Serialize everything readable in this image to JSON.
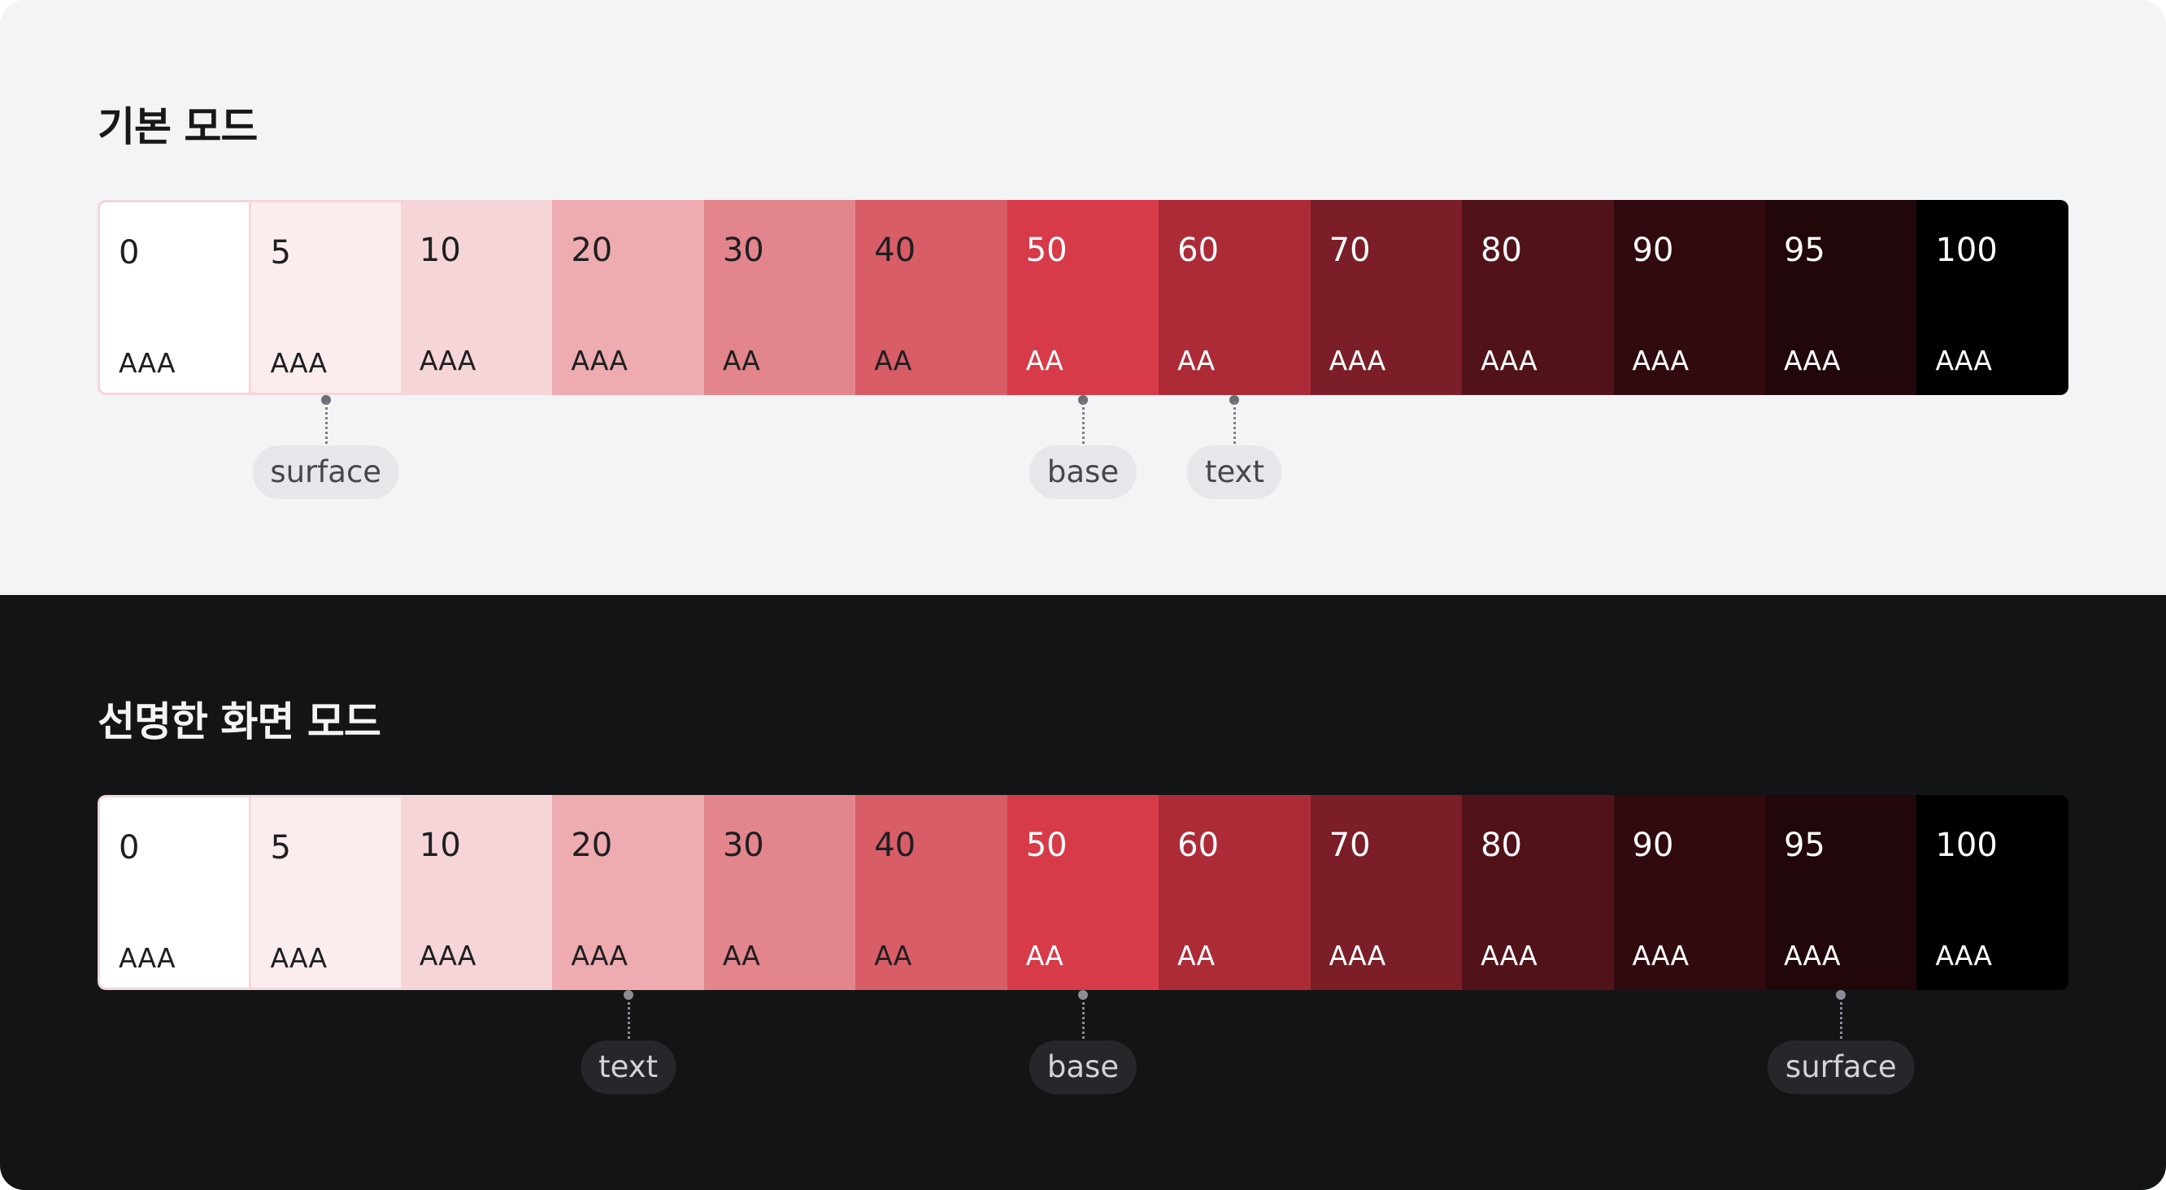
{
  "light_mode": {
    "title": "기본 모드",
    "swatches": [
      {
        "step": "0",
        "rating": "AAA",
        "color": "#ffffff",
        "text": "dark"
      },
      {
        "step": "5",
        "rating": "AAA",
        "color": "#fbedee",
        "text": "dark"
      },
      {
        "step": "10",
        "rating": "AAA",
        "color": "#f6d5d8",
        "text": "dark"
      },
      {
        "step": "20",
        "rating": "AAA",
        "color": "#eeabb0",
        "text": "dark"
      },
      {
        "step": "30",
        "rating": "AA",
        "color": "#e2858c",
        "text": "dark"
      },
      {
        "step": "40",
        "rating": "AA",
        "color": "#d85d67",
        "text": "dark"
      },
      {
        "step": "50",
        "rating": "AA",
        "color": "#d73a48",
        "text": "light"
      },
      {
        "step": "60",
        "rating": "AA",
        "color": "#ad2b37",
        "text": "light"
      },
      {
        "step": "70",
        "rating": "AAA",
        "color": "#7c1e27",
        "text": "light"
      },
      {
        "step": "80",
        "rating": "AAA",
        "color": "#521219",
        "text": "light"
      },
      {
        "step": "90",
        "rating": "AAA",
        "color": "#300a0f",
        "text": "light"
      },
      {
        "step": "95",
        "rating": "AAA",
        "color": "#21070a",
        "text": "light"
      },
      {
        "step": "100",
        "rating": "AAA",
        "color": "#000000",
        "text": "light"
      }
    ],
    "markers": [
      {
        "label": "surface",
        "step": "5"
      },
      {
        "label": "base",
        "step": "50"
      },
      {
        "label": "text",
        "step": "60"
      }
    ]
  },
  "dark_mode": {
    "title": "선명한 화면 모드",
    "swatches": [
      {
        "step": "0",
        "rating": "AAA",
        "color": "#ffffff",
        "text": "dark"
      },
      {
        "step": "5",
        "rating": "AAA",
        "color": "#fbedee",
        "text": "dark"
      },
      {
        "step": "10",
        "rating": "AAA",
        "color": "#f6d5d8",
        "text": "dark"
      },
      {
        "step": "20",
        "rating": "AAA",
        "color": "#eeabb0",
        "text": "dark"
      },
      {
        "step": "30",
        "rating": "AA",
        "color": "#e2858c",
        "text": "dark"
      },
      {
        "step": "40",
        "rating": "AA",
        "color": "#d85d67",
        "text": "dark"
      },
      {
        "step": "50",
        "rating": "AA",
        "color": "#d73a48",
        "text": "light"
      },
      {
        "step": "60",
        "rating": "AA",
        "color": "#ad2b37",
        "text": "light"
      },
      {
        "step": "70",
        "rating": "AAA",
        "color": "#7c1e27",
        "text": "light"
      },
      {
        "step": "80",
        "rating": "AAA",
        "color": "#521219",
        "text": "light"
      },
      {
        "step": "90",
        "rating": "AAA",
        "color": "#300a0f",
        "text": "light"
      },
      {
        "step": "95",
        "rating": "AAA",
        "color": "#21070a",
        "text": "light"
      },
      {
        "step": "100",
        "rating": "AAA",
        "color": "#000000",
        "text": "light"
      }
    ],
    "markers": [
      {
        "label": "text",
        "step": "20"
      },
      {
        "label": "base",
        "step": "50"
      },
      {
        "label": "surface",
        "step": "95"
      }
    ]
  }
}
